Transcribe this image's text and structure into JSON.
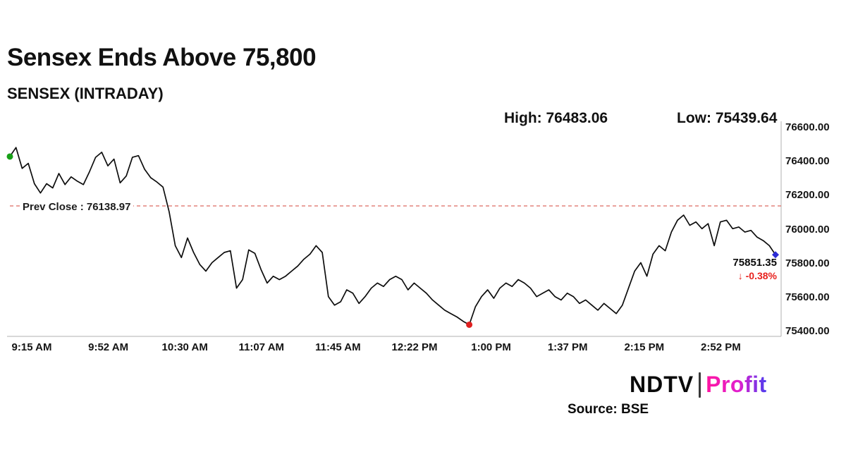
{
  "title": "Sensex Ends Above 75,800",
  "subtitle": "SENSEX (INTRADAY)",
  "stats": {
    "high_label": "High: 76483.06",
    "low_label": "Low: 75439.64"
  },
  "prev_close_label": "Prev Close : 76138.97",
  "price": {
    "value": "75851.35",
    "change": "↓ -0.38%"
  },
  "source": "Source: BSE",
  "logo": {
    "ndtv": "NDTV",
    "profit": "Profit"
  },
  "colors": {
    "line": "#0d0d0d",
    "prev_close_line": "#dd6a60",
    "negative_text": "#e8211d",
    "start_dot": "#17a017",
    "low_dot": "#e02020",
    "end_marker": "#2b2bd5",
    "axis": "#b0b0b0",
    "profit_gradient_start": "#ff14a0",
    "profit_gradient_end": "#4a3df0"
  },
  "chart_data": {
    "type": "line",
    "title": "SENSEX (INTRADAY)",
    "xlabel": "",
    "ylabel": "",
    "ylim": [
      75400,
      76600
    ],
    "grid": false,
    "legend": "none",
    "prev_close": 76138.97,
    "high": 76483.06,
    "low": 75439.64,
    "last": 75851.35,
    "change_pct": -0.38,
    "session_minutes": 375,
    "x_tick_labels": [
      "9:15 AM",
      "9:52 AM",
      "10:30 AM",
      "11:07 AM",
      "11:45 AM",
      "12:22 PM",
      "1:00 PM",
      "1:37 PM",
      "2:15 PM",
      "2:52 PM"
    ],
    "y_ticks": [
      76600,
      76400,
      76200,
      76000,
      75800,
      75600,
      75400
    ],
    "y_tick_labels": [
      "76600.00",
      "76400.00",
      "76200.00",
      "76000.00",
      "75800.00",
      "75600.00",
      "75400.00"
    ],
    "values": [
      76430,
      76483.06,
      76360,
      76390,
      76270,
      76215,
      76270,
      76245,
      76330,
      76265,
      76310,
      76285,
      76265,
      76340,
      76425,
      76455,
      76375,
      76415,
      76275,
      76315,
      76425,
      76435,
      76355,
      76305,
      76280,
      76250,
      76105,
      75905,
      75835,
      75950,
      75865,
      75795,
      75755,
      75805,
      75835,
      75865,
      75875,
      75655,
      75705,
      75880,
      75860,
      75765,
      75685,
      75725,
      75705,
      75725,
      75755,
      75785,
      75825,
      75855,
      75905,
      75865,
      75605,
      75555,
      75575,
      75645,
      75625,
      75565,
      75605,
      75655,
      75685,
      75665,
      75705,
      75725,
      75705,
      75645,
      75685,
      75655,
      75625,
      75585,
      75555,
      75525,
      75505,
      75485,
      75460,
      75439.64,
      75545,
      75605,
      75645,
      75595,
      75655,
      75685,
      75665,
      75705,
      75685,
      75655,
      75605,
      75625,
      75645,
      75605,
      75585,
      75625,
      75605,
      75565,
      75585,
      75555,
      75525,
      75565,
      75535,
      75505,
      75555,
      75655,
      75755,
      75805,
      75725,
      75855,
      75905,
      75875,
      75985,
      76055,
      76085,
      76025,
      76045,
      76005,
      76035,
      75905,
      76045,
      76055,
      76005,
      76015,
      75985,
      75995,
      75955,
      75935,
      75905,
      75851.35
    ]
  }
}
